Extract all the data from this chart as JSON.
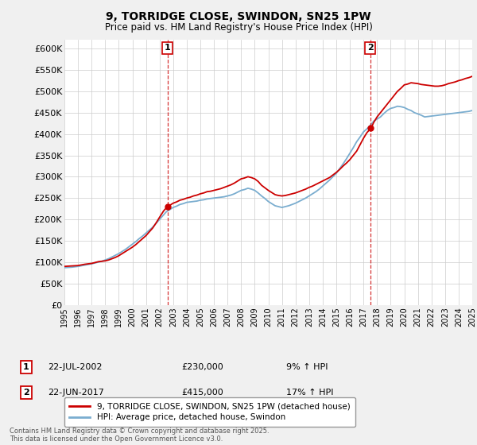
{
  "title": "9, TORRIDGE CLOSE, SWINDON, SN25 1PW",
  "subtitle": "Price paid vs. HM Land Registry's House Price Index (HPI)",
  "ylim": [
    0,
    620000
  ],
  "yticks": [
    0,
    50000,
    100000,
    150000,
    200000,
    250000,
    300000,
    350000,
    400000,
    450000,
    500000,
    550000,
    600000
  ],
  "ytick_labels": [
    "£0",
    "£50K",
    "£100K",
    "£150K",
    "£200K",
    "£250K",
    "£300K",
    "£350K",
    "£400K",
    "£450K",
    "£500K",
    "£550K",
    "£600K"
  ],
  "background_color": "#f0f0f0",
  "plot_bg_color": "#ffffff",
  "red_color": "#cc0000",
  "blue_color": "#7aadcf",
  "marker1_x": 7.583,
  "marker1_y": 230000,
  "marker2_x": 22.5,
  "marker2_y": 415000,
  "annotation1": [
    "1",
    "22-JUL-2002",
    "£230,000",
    "9% ↑ HPI"
  ],
  "annotation2": [
    "2",
    "22-JUN-2017",
    "£415,000",
    "17% ↑ HPI"
  ],
  "legend1": "9, TORRIDGE CLOSE, SWINDON, SN25 1PW (detached house)",
  "legend2": "HPI: Average price, detached house, Swindon",
  "footer": "Contains HM Land Registry data © Crown copyright and database right 2025.\nThis data is licensed under the Open Government Licence v3.0.",
  "red_x": [
    0.0,
    0.25,
    0.5,
    0.75,
    1.0,
    1.25,
    1.5,
    1.75,
    2.0,
    2.25,
    2.5,
    2.75,
    3.0,
    3.25,
    3.5,
    3.75,
    4.0,
    4.25,
    4.5,
    4.75,
    5.0,
    5.25,
    5.5,
    5.75,
    6.0,
    6.25,
    6.5,
    6.75,
    7.0,
    7.3,
    7.583,
    7.8,
    8.0,
    8.25,
    8.5,
    8.75,
    9.0,
    9.25,
    9.5,
    9.75,
    10.0,
    10.25,
    10.5,
    10.75,
    11.0,
    11.25,
    11.5,
    11.75,
    12.0,
    12.25,
    12.5,
    12.75,
    13.0,
    13.25,
    13.5,
    13.75,
    14.0,
    14.25,
    14.5,
    14.75,
    15.0,
    15.25,
    15.5,
    15.75,
    16.0,
    16.25,
    16.5,
    16.75,
    17.0,
    17.25,
    17.5,
    17.75,
    18.0,
    18.25,
    18.5,
    18.75,
    19.0,
    19.25,
    19.5,
    19.75,
    20.0,
    20.25,
    20.5,
    20.75,
    21.0,
    21.25,
    21.5,
    21.75,
    22.0,
    22.25,
    22.583,
    22.75,
    23.0,
    23.25,
    23.5,
    23.75,
    24.0,
    24.25,
    24.5,
    24.75,
    25.0,
    25.25,
    25.5,
    25.75,
    26.0,
    26.25,
    26.5,
    26.75,
    27.0,
    27.25,
    27.5,
    27.75,
    28.0,
    28.25,
    28.5,
    28.75,
    29.0,
    29.25,
    29.5,
    29.75,
    30.0
  ],
  "red_y": [
    90000,
    90500,
    91000,
    91500,
    92000,
    93500,
    95000,
    96000,
    97000,
    99000,
    101000,
    102000,
    103000,
    105000,
    108000,
    111000,
    115000,
    120000,
    125000,
    130000,
    135000,
    141000,
    148000,
    155000,
    162000,
    171000,
    180000,
    192000,
    205000,
    220000,
    230000,
    234000,
    238000,
    241000,
    245000,
    247000,
    250000,
    252000,
    255000,
    257000,
    260000,
    262000,
    265000,
    266000,
    268000,
    270000,
    272000,
    275000,
    278000,
    281000,
    285000,
    290000,
    295000,
    297000,
    300000,
    298000,
    295000,
    289000,
    280000,
    274000,
    268000,
    263000,
    258000,
    256000,
    255000,
    256000,
    258000,
    260000,
    262000,
    265000,
    268000,
    271000,
    275000,
    278000,
    282000,
    286000,
    290000,
    294000,
    298000,
    304000,
    310000,
    317000,
    325000,
    332000,
    340000,
    350000,
    360000,
    375000,
    390000,
    403000,
    415000,
    427000,
    440000,
    450000,
    460000,
    470000,
    480000,
    490000,
    500000,
    507000,
    515000,
    517000,
    520000,
    519000,
    518000,
    516000,
    515000,
    514000,
    513000,
    512000,
    512000,
    513000,
    515000,
    518000,
    520000,
    522000,
    525000,
    527000,
    530000,
    532000,
    535000
  ],
  "blue_x": [
    0.0,
    0.25,
    0.5,
    0.75,
    1.0,
    1.25,
    1.5,
    1.75,
    2.0,
    2.25,
    2.5,
    2.75,
    3.0,
    3.25,
    3.5,
    3.75,
    4.0,
    4.25,
    4.5,
    4.75,
    5.0,
    5.25,
    5.5,
    5.75,
    6.0,
    6.25,
    6.5,
    6.75,
    7.0,
    7.25,
    7.5,
    7.75,
    8.0,
    8.25,
    8.5,
    8.75,
    9.0,
    9.25,
    9.5,
    9.75,
    10.0,
    10.25,
    10.5,
    10.75,
    11.0,
    11.25,
    11.5,
    11.75,
    12.0,
    12.25,
    12.5,
    12.75,
    13.0,
    13.25,
    13.5,
    13.75,
    14.0,
    14.25,
    14.5,
    14.75,
    15.0,
    15.25,
    15.5,
    15.75,
    16.0,
    16.25,
    16.5,
    16.75,
    17.0,
    17.25,
    17.5,
    17.75,
    18.0,
    18.25,
    18.5,
    18.75,
    19.0,
    19.25,
    19.5,
    19.75,
    20.0,
    20.25,
    20.5,
    20.75,
    21.0,
    21.25,
    21.5,
    21.75,
    22.0,
    22.25,
    22.5,
    22.75,
    23.0,
    23.25,
    23.5,
    23.75,
    24.0,
    24.25,
    24.5,
    24.75,
    25.0,
    25.25,
    25.5,
    25.75,
    26.0,
    26.25,
    26.5,
    26.75,
    27.0,
    27.25,
    27.5,
    27.75,
    28.0,
    28.25,
    28.5,
    28.75,
    29.0,
    29.25,
    29.5,
    29.75,
    30.0
  ],
  "blue_y": [
    87000,
    87500,
    88000,
    89000,
    90000,
    91500,
    93000,
    94500,
    96000,
    98000,
    100000,
    102000,
    105000,
    108000,
    112000,
    116000,
    120000,
    125000,
    130000,
    136000,
    142000,
    148000,
    155000,
    161000,
    168000,
    175000,
    182000,
    191000,
    200000,
    209000,
    218000,
    223000,
    228000,
    231000,
    235000,
    237000,
    240000,
    241000,
    242000,
    243000,
    245000,
    246000,
    248000,
    249000,
    250000,
    251000,
    252000,
    253000,
    255000,
    257000,
    260000,
    264000,
    268000,
    270000,
    273000,
    271000,
    268000,
    262000,
    255000,
    249000,
    242000,
    237000,
    232000,
    230000,
    228000,
    230000,
    232000,
    235000,
    238000,
    242000,
    246000,
    250000,
    255000,
    260000,
    265000,
    271000,
    278000,
    285000,
    292000,
    300000,
    308000,
    319000,
    330000,
    342000,
    355000,
    368000,
    382000,
    393000,
    405000,
    412000,
    420000,
    430000,
    435000,
    440000,
    448000,
    455000,
    460000,
    462000,
    465000,
    464000,
    462000,
    458000,
    455000,
    450000,
    447000,
    444000,
    440000,
    441000,
    442000,
    443000,
    444000,
    445000,
    446000,
    447000,
    448000,
    449000,
    450000,
    451000,
    452000,
    453000,
    455000
  ],
  "xlim": [
    0,
    30
  ],
  "xtick_positions": [
    0,
    1,
    2,
    3,
    4,
    5,
    6,
    7,
    8,
    9,
    10,
    11,
    12,
    13,
    14,
    15,
    16,
    17,
    18,
    19,
    20,
    21,
    22,
    23,
    24,
    25,
    26,
    27,
    28,
    29,
    30
  ],
  "xtick_labels": [
    "1995",
    "1996",
    "1997",
    "1998",
    "1999",
    "2000",
    "2001",
    "2002",
    "2003",
    "2004",
    "2005",
    "2006",
    "2007",
    "2008",
    "2009",
    "2010",
    "2011",
    "2012",
    "2013",
    "2014",
    "2015",
    "2016",
    "2017",
    "2018",
    "2019",
    "2020",
    "2021",
    "2022",
    "2023",
    "2024",
    "2025"
  ]
}
